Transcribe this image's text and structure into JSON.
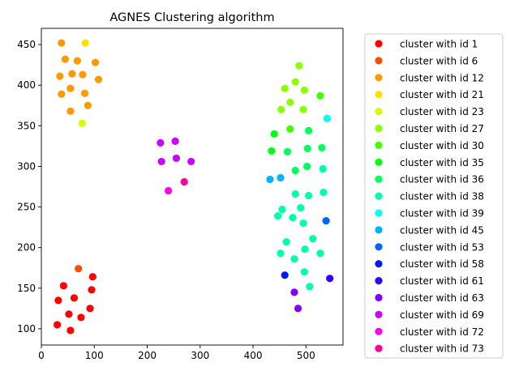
{
  "chart_data": {
    "type": "scatter",
    "title": "AGNES Clustering algorithm",
    "xlabel": "",
    "ylabel": "",
    "xlim": [
      0,
      570
    ],
    "ylim": [
      80,
      470
    ],
    "xticks": [
      0,
      100,
      200,
      300,
      400,
      500
    ],
    "yticks": [
      100,
      150,
      200,
      250,
      300,
      350,
      400,
      450
    ],
    "grid": false,
    "legend_position": "right",
    "series": [
      {
        "name": "cluster with id 1",
        "color": "#ff0000",
        "points": [
          [
            30,
            105
          ],
          [
            55,
            98
          ],
          [
            75,
            114
          ],
          [
            92,
            125
          ],
          [
            52,
            118
          ],
          [
            32,
            135
          ],
          [
            62,
            138
          ],
          [
            95,
            148
          ],
          [
            97,
            164
          ],
          [
            42,
            153
          ]
        ]
      },
      {
        "name": "cluster with id 6",
        "color": "#ff4d00",
        "points": [
          [
            70,
            174
          ]
        ]
      },
      {
        "name": "cluster with id 12",
        "color": "#ff9900",
        "points": [
          [
            38,
            452
          ],
          [
            45,
            432
          ],
          [
            68,
            430
          ],
          [
            102,
            428
          ],
          [
            35,
            411
          ],
          [
            58,
            414
          ],
          [
            78,
            413
          ],
          [
            108,
            407
          ],
          [
            55,
            396
          ],
          [
            38,
            389
          ],
          [
            82,
            390
          ],
          [
            88,
            375
          ],
          [
            55,
            368
          ]
        ]
      },
      {
        "name": "cluster with id 21",
        "color": "#ffe100",
        "points": [
          [
            83,
            452
          ]
        ]
      },
      {
        "name": "cluster with id 23",
        "color": "#d4ff00",
        "points": [
          [
            77,
            353
          ]
        ]
      },
      {
        "name": "cluster with id 27",
        "color": "#8cff00",
        "points": [
          [
            487,
            424
          ],
          [
            460,
            396
          ],
          [
            480,
            404
          ],
          [
            497,
            394
          ],
          [
            470,
            379
          ],
          [
            453,
            370
          ],
          [
            495,
            370
          ]
        ]
      },
      {
        "name": "cluster with id 30",
        "color": "#40ff00",
        "points": [
          [
            527,
            387
          ],
          [
            470,
            346
          ]
        ]
      },
      {
        "name": "cluster with id 35",
        "color": "#00ff10",
        "points": [
          [
            440,
            340
          ],
          [
            435,
            319
          ]
        ]
      },
      {
        "name": "cluster with id 36",
        "color": "#00ff5e",
        "points": [
          [
            505,
            344
          ],
          [
            465,
            318
          ],
          [
            503,
            322
          ],
          [
            530,
            323
          ],
          [
            480,
            295
          ],
          [
            502,
            300
          ]
        ]
      },
      {
        "name": "cluster with id 38",
        "color": "#00ffa9",
        "points": [
          [
            532,
            297
          ],
          [
            480,
            266
          ],
          [
            505,
            264
          ],
          [
            533,
            268
          ],
          [
            455,
            247
          ],
          [
            490,
            249
          ],
          [
            447,
            239
          ],
          [
            475,
            237
          ],
          [
            495,
            230
          ],
          [
            513,
            211
          ],
          [
            463,
            207
          ],
          [
            498,
            198
          ],
          [
            452,
            193
          ],
          [
            478,
            186
          ],
          [
            527,
            193
          ],
          [
            497,
            170
          ],
          [
            507,
            152
          ]
        ]
      },
      {
        "name": "cluster with id 39",
        "color": "#00fff5",
        "points": [
          [
            540,
            359
          ]
        ]
      },
      {
        "name": "cluster with id 45",
        "color": "#00b3ff",
        "points": [
          [
            432,
            284
          ],
          [
            452,
            286
          ]
        ]
      },
      {
        "name": "cluster with id 53",
        "color": "#0066ff",
        "points": [
          [
            538,
            233
          ]
        ]
      },
      {
        "name": "cluster with id 58",
        "color": "#001aff",
        "points": [
          [
            460,
            166
          ]
        ]
      },
      {
        "name": "cluster with id 61",
        "color": "#3300ff",
        "points": [
          [
            545,
            162
          ]
        ]
      },
      {
        "name": "cluster with id 63",
        "color": "#8000ff",
        "points": [
          [
            478,
            145
          ],
          [
            485,
            125
          ]
        ]
      },
      {
        "name": "cluster with id 69",
        "color": "#cc00ff",
        "points": [
          [
            225,
            329
          ],
          [
            253,
            331
          ],
          [
            255,
            310
          ],
          [
            227,
            306
          ],
          [
            283,
            306
          ]
        ]
      },
      {
        "name": "cluster with id 72",
        "color": "#ff00e6",
        "points": [
          [
            240,
            270
          ]
        ]
      },
      {
        "name": "cluster with id 73",
        "color": "#ff0099",
        "points": [
          [
            270,
            281
          ]
        ]
      }
    ]
  }
}
